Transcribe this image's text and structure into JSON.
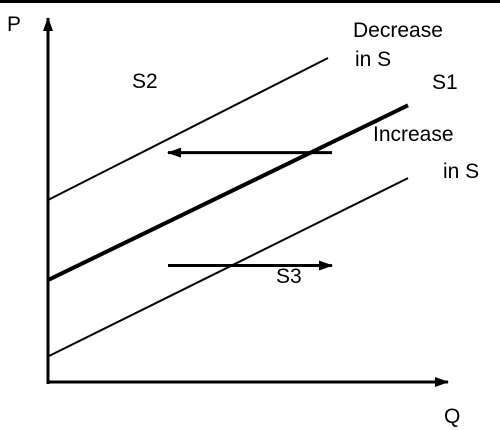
{
  "chart_data": {
    "type": "line",
    "title": "",
    "xlabel": "Q",
    "ylabel": "P",
    "xlim": [
      0,
      10
    ],
    "ylim": [
      0,
      10
    ],
    "grid": false,
    "legend": "none",
    "series": [
      {
        "name": "S2",
        "x": [
          0,
          7.0
        ],
        "y": [
          5.0,
          8.9
        ],
        "style": "thin"
      },
      {
        "name": "S1",
        "x": [
          0,
          9.0
        ],
        "y": [
          2.8,
          7.6
        ],
        "style": "thick"
      },
      {
        "name": "S3",
        "x": [
          0,
          9.0
        ],
        "y": [
          0.7,
          5.6
        ],
        "style": "thin"
      }
    ],
    "annotations": {
      "decrease": {
        "line1": "Decrease",
        "line2": "in S",
        "arrow_from_x": 7.1,
        "arrow_to_x": 3.0,
        "arrow_y": 6.3
      },
      "increase": {
        "line1": "Increase",
        "line2": "in S",
        "arrow_from_x": 3.0,
        "arrow_to_x": 7.1,
        "arrow_y": 3.2
      }
    },
    "colors": {
      "line": "#000000",
      "background": "#ffffff",
      "top_border": "#000000"
    }
  }
}
